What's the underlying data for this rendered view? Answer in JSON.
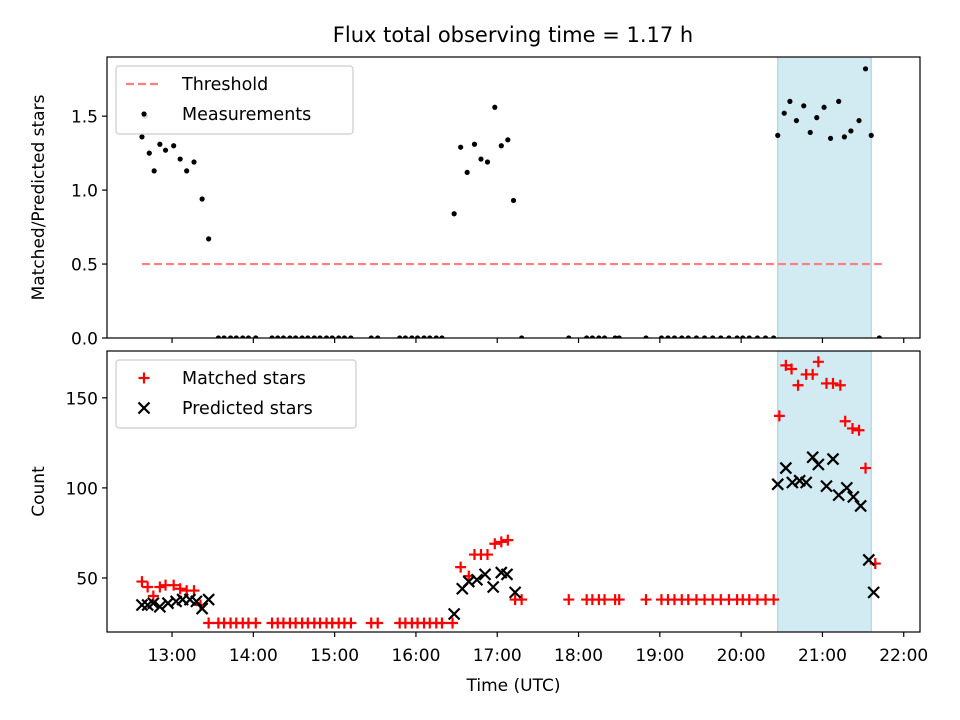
{
  "title": "Flux total observing time = 1.17 h",
  "colors": {
    "threshold": "#ff7f7f",
    "measurement": "#000000",
    "matched": "#ff0000",
    "predicted": "#000000",
    "highlight": "#add8e6"
  },
  "chart_data": [
    {
      "type": "scatter",
      "ylabel": "Matched/Predicted stars",
      "xlim": [
        12.2,
        22.2
      ],
      "ylim": [
        0,
        1.9
      ],
      "yticks": [
        0,
        0.5,
        1.0,
        1.5
      ],
      "ytick_labels": [
        "0.0",
        "0.5",
        "1.0",
        "1.5"
      ],
      "legend": {
        "placement": "top-left",
        "entries": [
          "Threshold",
          "Measurements"
        ]
      },
      "highlight_x": [
        20.45,
        21.6
      ],
      "threshold": {
        "name": "Threshold",
        "value": 0.5,
        "x": [
          12.63,
          21.73
        ]
      },
      "series": [
        {
          "name": "Measurements",
          "points": [
            [
              12.63,
              1.36
            ],
            [
              12.67,
              1.5
            ],
            [
              12.72,
              1.25
            ],
            [
              12.78,
              1.13
            ],
            [
              12.85,
              1.31
            ],
            [
              12.92,
              1.27
            ],
            [
              13.02,
              1.3
            ],
            [
              13.1,
              1.21
            ],
            [
              13.18,
              1.13
            ],
            [
              13.27,
              1.19
            ],
            [
              13.37,
              0.94
            ],
            [
              13.45,
              0.67
            ],
            [
              13.57,
              0
            ],
            [
              13.64,
              0
            ],
            [
              13.72,
              0
            ],
            [
              13.79,
              0
            ],
            [
              13.87,
              0
            ],
            [
              13.94,
              0
            ],
            [
              14.03,
              0
            ],
            [
              14.23,
              0
            ],
            [
              14.3,
              0
            ],
            [
              14.37,
              0
            ],
            [
              14.45,
              0
            ],
            [
              14.52,
              0
            ],
            [
              14.6,
              0
            ],
            [
              14.67,
              0
            ],
            [
              14.75,
              0
            ],
            [
              14.82,
              0
            ],
            [
              14.9,
              0
            ],
            [
              14.97,
              0
            ],
            [
              15.05,
              0
            ],
            [
              15.12,
              0
            ],
            [
              15.2,
              0
            ],
            [
              15.45,
              0
            ],
            [
              15.53,
              0
            ],
            [
              15.8,
              0
            ],
            [
              15.87,
              0
            ],
            [
              15.95,
              0
            ],
            [
              16.02,
              0
            ],
            [
              16.1,
              0
            ],
            [
              16.17,
              0
            ],
            [
              16.25,
              0
            ],
            [
              16.32,
              0
            ],
            [
              16.47,
              0.84
            ],
            [
              16.55,
              1.29
            ],
            [
              16.63,
              1.12
            ],
            [
              16.72,
              1.31
            ],
            [
              16.8,
              1.21
            ],
            [
              16.88,
              1.19
            ],
            [
              16.97,
              1.56
            ],
            [
              17.05,
              1.3
            ],
            [
              17.13,
              1.34
            ],
            [
              17.2,
              0.93
            ],
            [
              17.3,
              0
            ],
            [
              17.88,
              0
            ],
            [
              18.1,
              0
            ],
            [
              18.17,
              0
            ],
            [
              18.25,
              0
            ],
            [
              18.32,
              0
            ],
            [
              18.45,
              0
            ],
            [
              18.5,
              0
            ],
            [
              18.83,
              0
            ],
            [
              19.02,
              0
            ],
            [
              19.1,
              0
            ],
            [
              19.18,
              0
            ],
            [
              19.27,
              0
            ],
            [
              19.35,
              0
            ],
            [
              19.45,
              0
            ],
            [
              19.55,
              0
            ],
            [
              19.65,
              0
            ],
            [
              19.75,
              0
            ],
            [
              19.85,
              0
            ],
            [
              19.95,
              0
            ],
            [
              20.02,
              0
            ],
            [
              20.1,
              0
            ],
            [
              20.2,
              0
            ],
            [
              20.3,
              0
            ],
            [
              20.4,
              0
            ],
            [
              20.45,
              1.37
            ],
            [
              20.53,
              1.52
            ],
            [
              20.6,
              1.6
            ],
            [
              20.68,
              1.47
            ],
            [
              20.77,
              1.57
            ],
            [
              20.85,
              1.39
            ],
            [
              20.93,
              1.49
            ],
            [
              21.02,
              1.56
            ],
            [
              21.1,
              1.35
            ],
            [
              21.2,
              1.6
            ],
            [
              21.27,
              1.36
            ],
            [
              21.35,
              1.4
            ],
            [
              21.45,
              1.47
            ],
            [
              21.53,
              1.82
            ],
            [
              21.6,
              1.37
            ],
            [
              21.7,
              0
            ]
          ]
        }
      ]
    },
    {
      "type": "scatter",
      "xlabel": "Time (UTC)",
      "ylabel": "Count",
      "xlim": [
        12.2,
        22.2
      ],
      "ylim": [
        20,
        176
      ],
      "yticks": [
        50,
        100,
        150
      ],
      "ytick_labels": [
        "50",
        "100",
        "150"
      ],
      "xticks": [
        13,
        14,
        15,
        16,
        17,
        18,
        19,
        20,
        21,
        22
      ],
      "xtick_labels": [
        "13:00",
        "14:00",
        "15:00",
        "16:00",
        "17:00",
        "18:00",
        "19:00",
        "20:00",
        "21:00",
        "22:00"
      ],
      "legend": {
        "placement": "top-left",
        "entries": [
          "Matched stars",
          "Predicted stars"
        ]
      },
      "highlight_x": [
        20.45,
        21.6
      ],
      "series": [
        {
          "name": "Matched stars",
          "marker": "plus",
          "points": [
            [
              12.63,
              48
            ],
            [
              12.7,
              45
            ],
            [
              12.77,
              40
            ],
            [
              12.85,
              45
            ],
            [
              12.92,
              46
            ],
            [
              13.02,
              46
            ],
            [
              13.1,
              44
            ],
            [
              13.18,
              43
            ],
            [
              13.27,
              43
            ],
            [
              13.35,
              35
            ],
            [
              13.45,
              25
            ],
            [
              13.57,
              25
            ],
            [
              13.64,
              25
            ],
            [
              13.72,
              25
            ],
            [
              13.79,
              25
            ],
            [
              13.87,
              25
            ],
            [
              13.94,
              25
            ],
            [
              14.03,
              25
            ],
            [
              14.23,
              25
            ],
            [
              14.3,
              25
            ],
            [
              14.37,
              25
            ],
            [
              14.45,
              25
            ],
            [
              14.52,
              25
            ],
            [
              14.6,
              25
            ],
            [
              14.67,
              25
            ],
            [
              14.75,
              25
            ],
            [
              14.82,
              25
            ],
            [
              14.9,
              25
            ],
            [
              14.97,
              25
            ],
            [
              15.05,
              25
            ],
            [
              15.12,
              25
            ],
            [
              15.2,
              25
            ],
            [
              15.45,
              25
            ],
            [
              15.53,
              25
            ],
            [
              15.8,
              25
            ],
            [
              15.87,
              25
            ],
            [
              15.95,
              25
            ],
            [
              16.02,
              25
            ],
            [
              16.1,
              25
            ],
            [
              16.17,
              25
            ],
            [
              16.25,
              25
            ],
            [
              16.32,
              25
            ],
            [
              16.45,
              25
            ],
            [
              16.55,
              56
            ],
            [
              16.65,
              51
            ],
            [
              16.72,
              63
            ],
            [
              16.8,
              63
            ],
            [
              16.88,
              63
            ],
            [
              16.97,
              69
            ],
            [
              17.05,
              70
            ],
            [
              17.13,
              71
            ],
            [
              17.22,
              38
            ],
            [
              17.3,
              38
            ],
            [
              17.88,
              38
            ],
            [
              18.1,
              38
            ],
            [
              18.17,
              38
            ],
            [
              18.25,
              38
            ],
            [
              18.32,
              38
            ],
            [
              18.45,
              38
            ],
            [
              18.5,
              38
            ],
            [
              18.83,
              38
            ],
            [
              19.02,
              38
            ],
            [
              19.1,
              38
            ],
            [
              19.18,
              38
            ],
            [
              19.27,
              38
            ],
            [
              19.35,
              38
            ],
            [
              19.45,
              38
            ],
            [
              19.55,
              38
            ],
            [
              19.65,
              38
            ],
            [
              19.75,
              38
            ],
            [
              19.85,
              38
            ],
            [
              19.95,
              38
            ],
            [
              20.02,
              38
            ],
            [
              20.1,
              38
            ],
            [
              20.2,
              38
            ],
            [
              20.3,
              38
            ],
            [
              20.4,
              38
            ],
            [
              20.47,
              140
            ],
            [
              20.55,
              168
            ],
            [
              20.62,
              166
            ],
            [
              20.7,
              157
            ],
            [
              20.8,
              163
            ],
            [
              20.88,
              163
            ],
            [
              20.95,
              170
            ],
            [
              21.05,
              158
            ],
            [
              21.13,
              158
            ],
            [
              21.22,
              157
            ],
            [
              21.28,
              137
            ],
            [
              21.37,
              133
            ],
            [
              21.45,
              132
            ],
            [
              21.53,
              111
            ],
            [
              21.65,
              58
            ]
          ]
        },
        {
          "name": "Predicted stars",
          "marker": "x",
          "points": [
            [
              12.63,
              35
            ],
            [
              12.7,
              35
            ],
            [
              12.77,
              36
            ],
            [
              12.85,
              34
            ],
            [
              12.95,
              36
            ],
            [
              13.05,
              37
            ],
            [
              13.13,
              38
            ],
            [
              13.22,
              38
            ],
            [
              13.3,
              37
            ],
            [
              13.37,
              33
            ],
            [
              13.45,
              38
            ],
            [
              16.47,
              30
            ],
            [
              16.57,
              44
            ],
            [
              16.65,
              48
            ],
            [
              16.75,
              49
            ],
            [
              16.85,
              52
            ],
            [
              16.95,
              45
            ],
            [
              17.05,
              53
            ],
            [
              17.12,
              52
            ],
            [
              17.22,
              42
            ],
            [
              20.45,
              102
            ],
            [
              20.55,
              111
            ],
            [
              20.63,
              103
            ],
            [
              20.72,
              104
            ],
            [
              20.8,
              103
            ],
            [
              20.88,
              117
            ],
            [
              20.95,
              113
            ],
            [
              21.05,
              101
            ],
            [
              21.13,
              116
            ],
            [
              21.2,
              96
            ],
            [
              21.3,
              100
            ],
            [
              21.38,
              95
            ],
            [
              21.47,
              90
            ],
            [
              21.57,
              60
            ],
            [
              21.63,
              42
            ]
          ]
        }
      ]
    }
  ]
}
